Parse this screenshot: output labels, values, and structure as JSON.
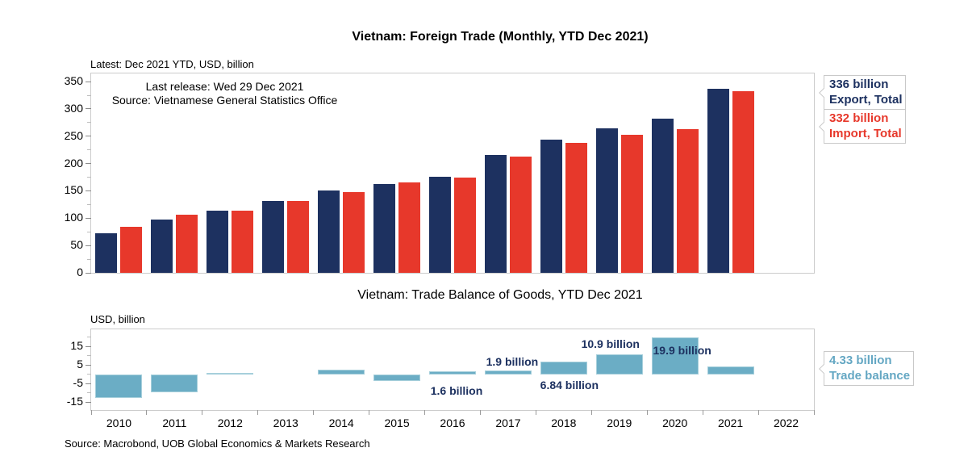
{
  "top_chart": {
    "title": "Vietnam: Foreign Trade (Monthly, YTD Dec 2021)",
    "subtitle": "Latest: Dec 2021 YTD, USD, billion",
    "annotation_line1": "Last release: Wed 29 Dec 2021",
    "annotation_line2": "Source: Vietnamese General Statistics Office",
    "callouts": [
      {
        "value": "336 billion",
        "label": "Export, Total",
        "color": "#1d3160"
      },
      {
        "value": "332 billion",
        "label": "Import, Total",
        "color": "#e7382b"
      }
    ]
  },
  "bottom_chart": {
    "title": "Vietnam: Trade Balance of Goods, YTD Dec 2021",
    "subtitle": "USD, billion",
    "callout": {
      "value": "4.33 billion",
      "label": "Trade balance",
      "color": "#64a7c3"
    }
  },
  "footer": "Source: Macrobond, UOB Global Economics & Markets Research",
  "colors": {
    "export": "#1d3160",
    "import": "#e7382b",
    "balance_fill": "#6badc5",
    "balance_border": "#a6cfdb",
    "value_label": "#1d3160",
    "plot_border": "#cccccc"
  },
  "chart_data": [
    {
      "type": "bar",
      "title": "Vietnam: Foreign Trade (Monthly, YTD Dec 2021)",
      "subtitle": "Latest: Dec 2021 YTD, USD, billion",
      "categories": [
        2010,
        2011,
        2012,
        2013,
        2014,
        2015,
        2016,
        2017,
        2018,
        2019,
        2020,
        2021,
        2022
      ],
      "series": [
        {
          "name": "Export, Total",
          "color": "#1d3160",
          "values": [
            72.2,
            96.9,
            114.5,
            132.0,
            150.2,
            162.0,
            176.6,
            215.1,
            243.7,
            264.3,
            282.7,
            336.3,
            null
          ]
        },
        {
          "name": "Import, Total",
          "color": "#e7382b",
          "values": [
            84.8,
            106.7,
            113.8,
            132.0,
            147.8,
            165.8,
            174.8,
            213.2,
            237.2,
            253.4,
            262.7,
            332.2,
            null
          ]
        }
      ],
      "ylabel": "USD, billion",
      "ylim": [
        0,
        365
      ],
      "yticks": [
        0,
        50,
        100,
        150,
        200,
        250,
        300,
        350
      ],
      "yticks_minor": [
        25,
        75,
        125,
        175,
        225,
        275,
        325
      ],
      "grid": false,
      "legend_position": "right-callouts",
      "annotations": [
        "Last release: Wed 29 Dec 2021",
        "Source: Vietnamese General Statistics Office"
      ],
      "latest_labels": [
        "336 billion Export, Total",
        "332 billion Import, Total"
      ]
    },
    {
      "type": "bar",
      "title": "Vietnam: Trade Balance of Goods, YTD Dec 2021",
      "subtitle": "USD, billion",
      "categories": [
        2010,
        2011,
        2012,
        2013,
        2014,
        2015,
        2016,
        2017,
        2018,
        2019,
        2020,
        2021,
        2022
      ],
      "values": [
        -12.6,
        -9.84,
        0.75,
        0.0,
        2.37,
        -3.55,
        1.6,
        1.9,
        6.84,
        10.9,
        19.9,
        4.33,
        null
      ],
      "ylim": [
        -19.3,
        24.2
      ],
      "yticks": [
        15,
        5,
        -5,
        -15
      ],
      "yticks_minor": [
        20,
        10,
        0,
        -10
      ],
      "grid": false,
      "bar_labels": [
        {
          "year": 2016,
          "text": "1.6 billion",
          "placement": "below"
        },
        {
          "year": 2017,
          "text": "1.9 billion",
          "placement": "above"
        },
        {
          "year": 2018,
          "text": "6.84 billion",
          "placement": "below"
        },
        {
          "year": 2019,
          "text": "10.9 billion",
          "placement": "above"
        },
        {
          "year": 2020,
          "text": "19.9 billion",
          "placement": "on"
        }
      ],
      "latest_label": "4.33 billion Trade balance"
    }
  ]
}
